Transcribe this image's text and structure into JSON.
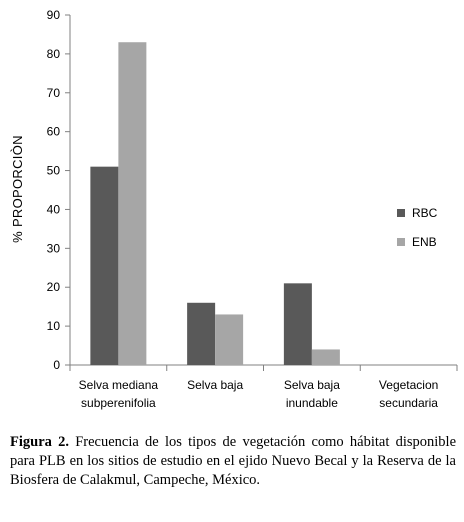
{
  "chart_data": {
    "type": "bar",
    "ylabel": "% PROPORCIÒN",
    "ylim": [
      0,
      90
    ],
    "yticks": [
      0,
      10,
      20,
      30,
      40,
      50,
      60,
      70,
      80,
      90
    ],
    "categories": [
      [
        "Selva mediana",
        "subperenifolia"
      ],
      [
        "Selva baja"
      ],
      [
        "Selva baja",
        "inundable"
      ],
      [
        "Vegetacion",
        "secundaria"
      ]
    ],
    "series": [
      {
        "name": "RBC",
        "color": "#595959",
        "values": [
          51,
          16,
          21,
          0
        ]
      },
      {
        "name": "ENB",
        "color": "#a6a6a6",
        "values": [
          83,
          13,
          4,
          0
        ]
      }
    ],
    "legend_position": "right",
    "grid": false
  },
  "caption": {
    "label": "Figura 2.",
    "text": " Frecuencia de los tipos de vegetación como hábitat disponible para PLB en los sitios de estudio en el ejido Nuevo Becal y la Reserva de la Biosfera de Calakmul, Campeche, México."
  }
}
